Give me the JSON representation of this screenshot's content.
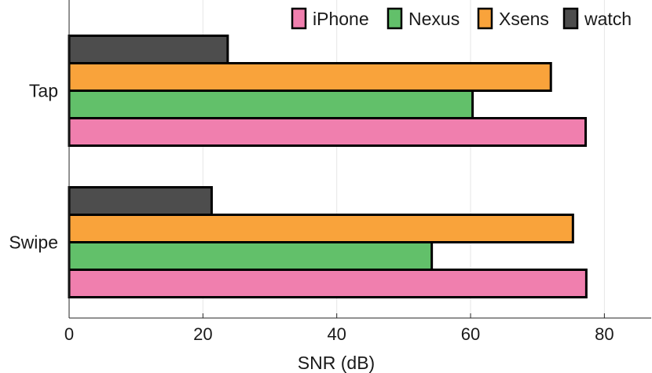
{
  "chart_data": {
    "type": "bar",
    "orientation": "horizontal",
    "categories": [
      "Tap",
      "Swipe"
    ],
    "series": [
      {
        "name": "iPhone",
        "color": "#f07fae",
        "values": [
          77.2,
          77.3
        ]
      },
      {
        "name": "Nexus",
        "color": "#62c06a",
        "values": [
          60.3,
          54.2
        ]
      },
      {
        "name": "Xsens",
        "color": "#f9a33b",
        "values": [
          72.0,
          75.3
        ]
      },
      {
        "name": "watch",
        "color": "#4d4d4d",
        "values": [
          23.7,
          21.3
        ]
      }
    ],
    "xlabel": "SNR (dB)",
    "ylabel": "",
    "xlim": [
      0,
      87
    ],
    "xticks": [
      0,
      20,
      40,
      60,
      80
    ],
    "grid": true,
    "legend": {
      "position": "top-right",
      "orientation": "horizontal"
    }
  }
}
